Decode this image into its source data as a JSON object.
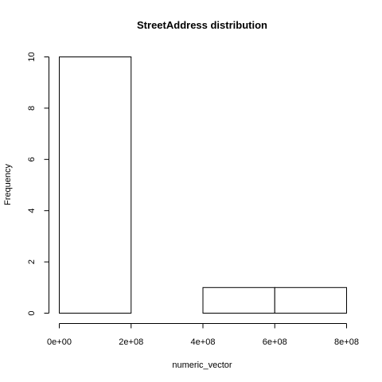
{
  "chart_data": {
    "type": "bar",
    "title": "StreetAddress distribution",
    "xlabel": "numeric_vector",
    "ylabel": "Frequency",
    "bins": [
      {
        "start": 0,
        "end": 200000000,
        "count": 10
      },
      {
        "start": 200000000,
        "end": 400000000,
        "count": 0
      },
      {
        "start": 400000000,
        "end": 600000000,
        "count": 1
      },
      {
        "start": 600000000,
        "end": 800000000,
        "count": 1
      }
    ],
    "xlim": [
      0,
      800000000
    ],
    "ylim": [
      0,
      10
    ],
    "x_ticks": [
      {
        "value": 0,
        "label": "0e+00"
      },
      {
        "value": 200000000,
        "label": "2e+08"
      },
      {
        "value": 400000000,
        "label": "4e+08"
      },
      {
        "value": 600000000,
        "label": "6e+08"
      },
      {
        "value": 800000000,
        "label": "8e+08"
      }
    ],
    "y_ticks": [
      {
        "value": 0,
        "label": "0"
      },
      {
        "value": 2,
        "label": "2"
      },
      {
        "value": 4,
        "label": "4"
      },
      {
        "value": 6,
        "label": "6"
      },
      {
        "value": 8,
        "label": "8"
      },
      {
        "value": 10,
        "label": "10"
      }
    ],
    "grid": false,
    "legend": "none",
    "bar_fill": "#ffffff",
    "bar_stroke": "#000000"
  }
}
